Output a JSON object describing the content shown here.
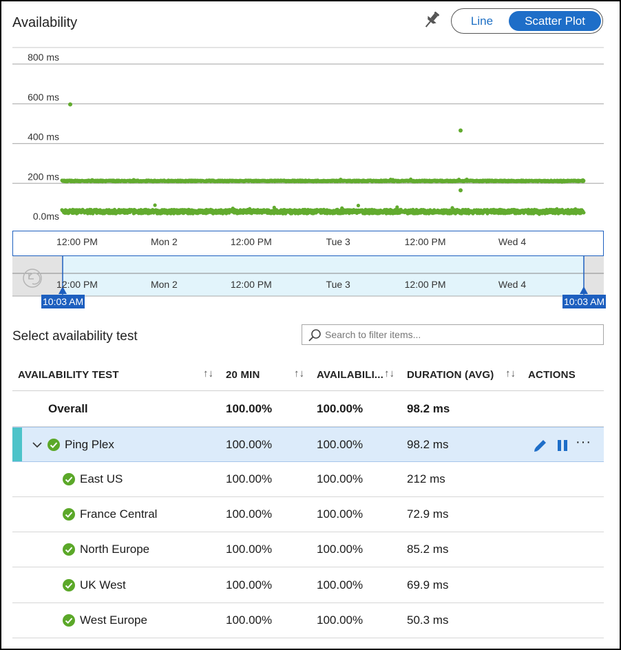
{
  "panel": {
    "title": "Availability",
    "pin_icon": "pin-icon",
    "view_toggle": {
      "line_label": "Line",
      "scatter_label": "Scatter Plot",
      "selected": "Scatter Plot"
    },
    "colors": {
      "accent": "#1e6ec8",
      "point": "#62ab2f",
      "brush": "#e0f3fb",
      "badge": "#1d5fbf",
      "row_highlight": "#dcebfa",
      "row_marker": "#4cc3c9"
    }
  },
  "chart_data": {
    "type": "scatter",
    "y_ticks": [
      "0.0ms",
      "200 ms",
      "400 ms",
      "600 ms",
      "800 ms"
    ],
    "ylim": [
      0,
      800
    ],
    "x_ticks": [
      "12:00 PM",
      "Mon 2",
      "12:00 PM",
      "Tue 3",
      "12:00 PM",
      "Wed 4"
    ],
    "grid": true,
    "series": [
      {
        "bands": [
          {
            "approx_value_ms": 58,
            "spread_ms": 20
          },
          {
            "approx_value_ms": 212,
            "spread_ms": 6
          }
        ],
        "outliers": [
          {
            "x": "Sun 1 ~10:30 AM",
            "y": 597
          },
          {
            "x": "Tue 3 ~10:00 PM",
            "y": 466
          },
          {
            "x": "Tue 3 ~10:00 PM",
            "y": 165
          }
        ]
      }
    ]
  },
  "brush": {
    "x_ticks": [
      "12:00 PM",
      "Mon 2",
      "12:00 PM",
      "Tue 3",
      "12:00 PM",
      "Wed 4"
    ],
    "start_label": "10:03 AM",
    "end_label": "10:03 AM",
    "reset_icon": "reset-zoom-icon"
  },
  "selector": {
    "title": "Select availability test",
    "search_placeholder": "Search to filter items..."
  },
  "table": {
    "headers": [
      "AVAILABILITY TEST",
      "20 MIN",
      "AVAILABILI...",
      "DURATION (AVG)",
      "ACTIONS"
    ],
    "sort_glyph": "↑↓",
    "overall": {
      "name": "Overall",
      "min20": "100.00%",
      "availability": "100.00%",
      "duration": "98.2 ms"
    },
    "test": {
      "name": "Ping Plex",
      "min20": "100.00%",
      "availability": "100.00%",
      "duration": "98.2 ms",
      "status": "passed",
      "actions": [
        "edit-icon",
        "pause-icon",
        "more-icon"
      ],
      "more_label": "···"
    },
    "locations": [
      {
        "name": "East US",
        "min20": "100.00%",
        "availability": "100.00%",
        "duration": "212 ms",
        "status": "passed"
      },
      {
        "name": "France Central",
        "min20": "100.00%",
        "availability": "100.00%",
        "duration": "72.9 ms",
        "status": "passed"
      },
      {
        "name": "North Europe",
        "min20": "100.00%",
        "availability": "100.00%",
        "duration": "85.2 ms",
        "status": "passed"
      },
      {
        "name": "UK West",
        "min20": "100.00%",
        "availability": "100.00%",
        "duration": "69.9 ms",
        "status": "passed"
      },
      {
        "name": "West Europe",
        "min20": "100.00%",
        "availability": "100.00%",
        "duration": "50.3 ms",
        "status": "passed"
      }
    ]
  }
}
